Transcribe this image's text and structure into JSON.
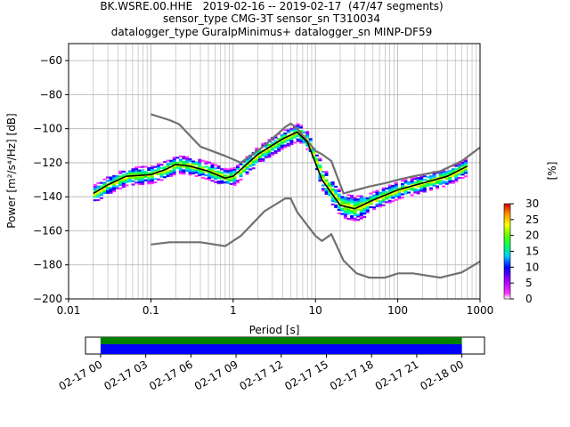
{
  "title": {
    "line1": "BK.WSRE.00.HHE   2019-02-16 -- 2019-02-17  (47/47 segments)",
    "line2": "sensor_type CMG-3T sensor_sn T310034",
    "line3": "datalogger_type GuralpMinimus+ datalogger_sn MINP-DF59"
  },
  "chart_data": [
    {
      "type": "heatmap",
      "xlabel": "Period [s]",
      "ylabel": "Power [m²/s⁴/Hz] [dB]",
      "xscale": "log",
      "xlim": [
        0.01,
        1000
      ],
      "ylim": [
        -200,
        -50
      ],
      "x_ticks": [
        0.01,
        0.1,
        1,
        10,
        100,
        1000
      ],
      "x_tick_labels": [
        "0.01",
        "0.1",
        "1",
        "10",
        "100",
        "1000"
      ],
      "y_ticks": [
        -200,
        -180,
        -160,
        -140,
        -120,
        -100,
        -80,
        -60
      ],
      "y_tick_labels": [
        "−200",
        "−180",
        "−160",
        "−140",
        "−120",
        "−100",
        "−80",
        "−60"
      ],
      "grid": true,
      "series": [
        {
          "name": "NHNM",
          "color": "#707070",
          "x": [
            0.1,
            0.17,
            0.22,
            0.4,
            0.8,
            1.24,
            2.4,
            4.3,
            5.0,
            6.0,
            10,
            12,
            15.6,
            21.9,
            31.6,
            45,
            70,
            101,
            154,
            328,
            600,
            1000
          ],
          "y": [
            -91.5,
            -95,
            -97.3,
            -110.5,
            -116,
            -120,
            -110,
            -99,
            -97,
            -100,
            -113,
            -115,
            -119,
            -138,
            -136,
            -134,
            -132,
            -130,
            -128,
            -125,
            -119,
            -111
          ]
        },
        {
          "name": "NLNM",
          "color": "#707070",
          "x": [
            0.1,
            0.17,
            0.4,
            0.8,
            1.24,
            2.4,
            4.3,
            5.0,
            6.0,
            10,
            12,
            15.6,
            21.9,
            31.6,
            45,
            70,
            101,
            154,
            328,
            600,
            1000
          ],
          "y": [
            -168,
            -166.7,
            -166.7,
            -169,
            -163,
            -148.5,
            -141,
            -141,
            -149,
            -163,
            -166,
            -162,
            -177.5,
            -185,
            -187.5,
            -187.5,
            -185,
            -185,
            -187.5,
            -184.4,
            -178
          ]
        },
        {
          "name": "median",
          "color": "#000000",
          "x": [
            0.02,
            0.03,
            0.05,
            0.1,
            0.15,
            0.2,
            0.3,
            0.5,
            0.8,
            1,
            2,
            4,
            6,
            8,
            12,
            20,
            30,
            50,
            100,
            200,
            400,
            700
          ],
          "y": [
            -138,
            -133,
            -128,
            -127,
            -124,
            -121,
            -122,
            -125,
            -129,
            -128,
            -115,
            -106,
            -102,
            -108,
            -130,
            -145,
            -147,
            -142,
            -136,
            -132,
            -128,
            -122
          ]
        }
      ],
      "colorbar": {
        "label": "[%]",
        "min": 0,
        "max": 30,
        "ticks": [
          0,
          5,
          10,
          15,
          20,
          25,
          30
        ],
        "tick_labels": [
          "0",
          "5",
          "10",
          "15",
          "20",
          "25",
          "30"
        ]
      }
    },
    {
      "type": "timeline",
      "xlim": [
        "2019-02-16 23:00",
        "2019-02-18 01:30"
      ],
      "tick_labels": [
        "02-17 00",
        "02-17 03",
        "02-17 06",
        "02-17 09",
        "02-17 12",
        "02-17 15",
        "02-17 18",
        "02-17 21",
        "02-18 00"
      ],
      "ticks_hours": [
        0,
        3,
        6,
        9,
        12,
        15,
        18,
        21,
        24
      ],
      "bands": [
        {
          "color": "#008000",
          "start_hour": 0,
          "end_hour": 24
        },
        {
          "color": "#0000ff",
          "start_hour": 0,
          "end_hour": 24
        }
      ]
    }
  ]
}
